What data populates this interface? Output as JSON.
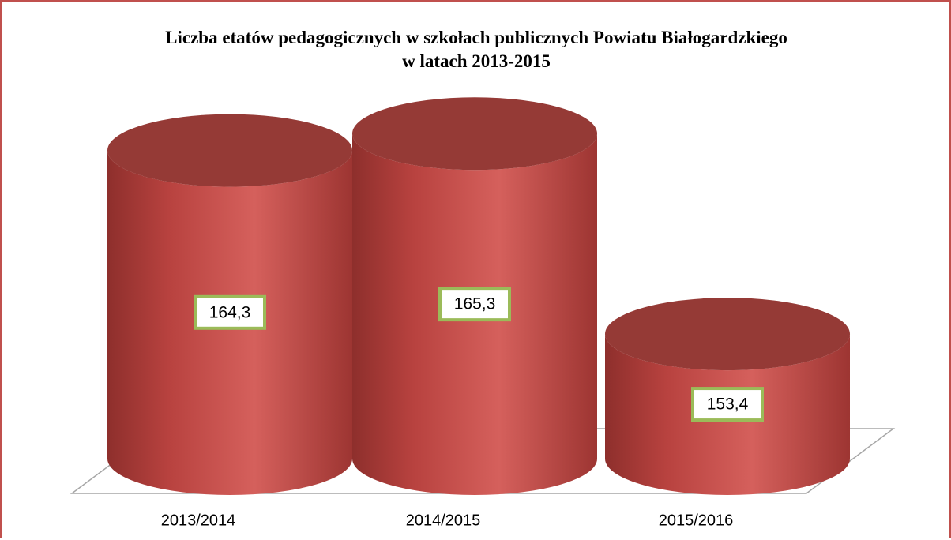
{
  "chart_data": {
    "type": "bar",
    "title": "Liczba etatów pedagogicznych w szkołach publicznych Powiatu Białogardzkiego w latach 2013-2015",
    "categories": [
      "2013/2014",
      "2014/2015",
      "2015/2016"
    ],
    "values": [
      164.3,
      165.3,
      153.4
    ],
    "value_labels": [
      "164,3",
      "165,3",
      "153,4"
    ],
    "color": "#c0504d",
    "ylim": [
      146,
      167
    ]
  }
}
